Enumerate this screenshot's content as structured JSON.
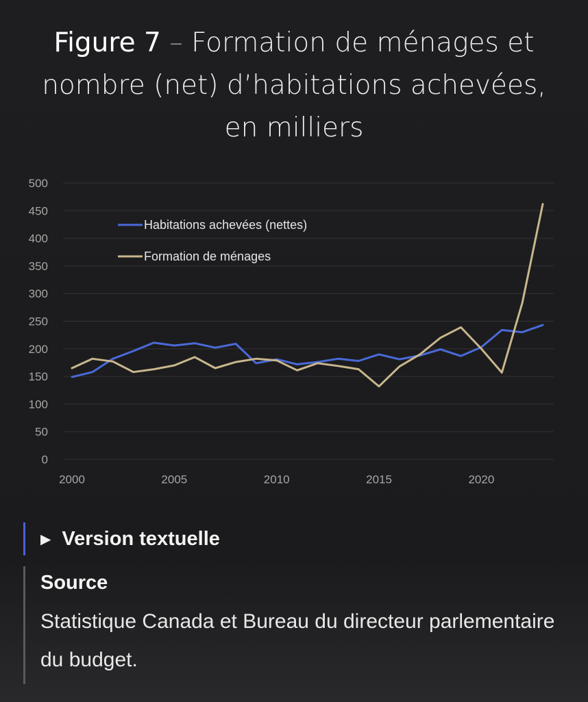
{
  "figure": {
    "number": "Figure 7",
    "separator": "–",
    "title": "Formation de ménages et nombre (net) d’habitations achevées, en milliers"
  },
  "chart_data": {
    "type": "line",
    "title": "Formation de ménages et nombre (net) d’habitations achevées, en milliers",
    "xlabel": "",
    "ylabel": "",
    "x": [
      2000,
      2001,
      2002,
      2003,
      2004,
      2005,
      2006,
      2007,
      2008,
      2009,
      2010,
      2011,
      2012,
      2013,
      2014,
      2015,
      2016,
      2017,
      2018,
      2019,
      2020,
      2021,
      2022,
      2023
    ],
    "x_ticks": [
      2000,
      2005,
      2010,
      2015,
      2020
    ],
    "y_ticks": [
      0,
      50,
      100,
      150,
      200,
      250,
      300,
      350,
      400,
      450,
      500
    ],
    "xlim": [
      2000,
      2023
    ],
    "ylim": [
      0,
      500
    ],
    "grid": true,
    "legend_position": "top-left",
    "series": [
      {
        "name": "Habitations achevées (nettes)",
        "color": "#4a6ad8",
        "values": [
          149,
          158,
          182,
          196,
          211,
          206,
          210,
          202,
          209,
          174,
          181,
          172,
          176,
          182,
          178,
          190,
          181,
          188,
          199,
          187,
          203,
          234,
          230,
          243
        ]
      },
      {
        "name": "Formation de ménages",
        "color": "#c8b68d",
        "values": [
          165,
          182,
          177,
          158,
          163,
          170,
          185,
          165,
          176,
          182,
          179,
          161,
          174,
          169,
          163,
          132,
          168,
          190,
          220,
          239,
          200,
          157,
          283,
          462
        ]
      }
    ],
    "colors": {
      "grid": "#333336",
      "tick_text": "#a6a6a6"
    }
  },
  "details": {
    "toggle_icon": "triangle-right-icon",
    "label": "Version textuelle"
  },
  "source": {
    "heading": "Source",
    "text": "Statistique Canada et Bureau du directeur parlementaire du budget."
  }
}
